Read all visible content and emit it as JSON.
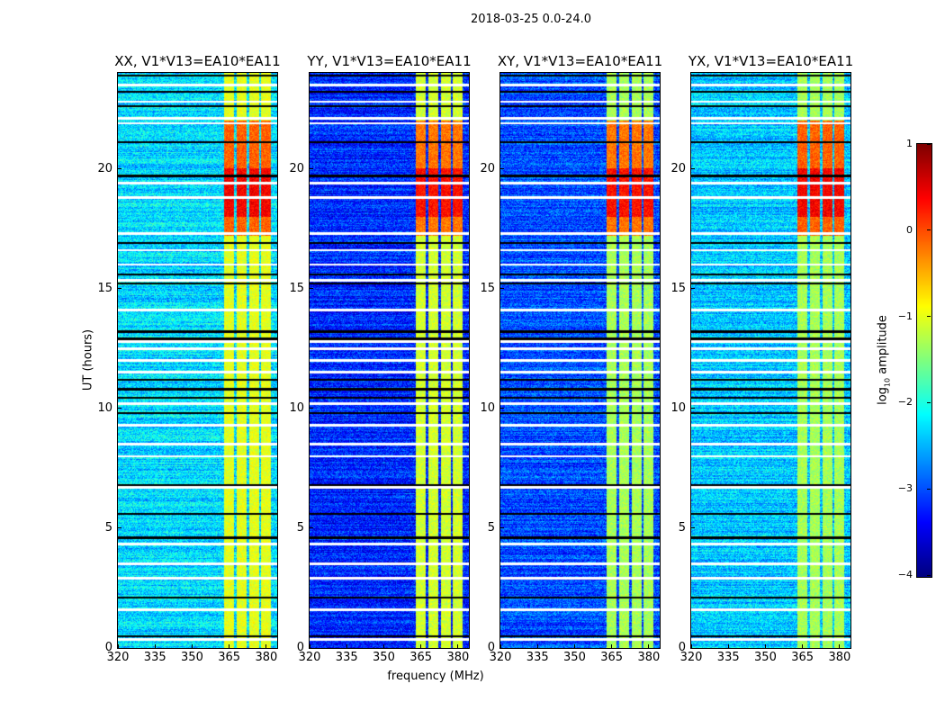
{
  "chart_data": {
    "type": "heatmap",
    "title": "2018-03-25 0.0-24.0",
    "xlabel": "frequency (MHz)",
    "ylabel": "UT (hours)",
    "xlim": [
      320,
      384.4
    ],
    "ylim": [
      0,
      24
    ],
    "xticks": [
      "320",
      "335",
      "350",
      "365",
      "380"
    ],
    "xtick_values": [
      320,
      335,
      350,
      365,
      380
    ],
    "yticks": [
      "0",
      "5",
      "10",
      "15",
      "20"
    ],
    "ytick_values": [
      0,
      5,
      10,
      15,
      20
    ],
    "colorbar": {
      "label_prefix": "log",
      "label_sub": "10",
      "label_suffix": " amplitude",
      "colormap": "jet",
      "range": [
        -4,
        1
      ],
      "ticks": [
        "1",
        "0",
        "−1",
        "−2",
        "−3",
        "−4"
      ],
      "tick_values": [
        1,
        0,
        -1,
        -2,
        -3,
        -4
      ]
    },
    "panels": [
      {
        "title": "XX, V1*V13=EA10*EA11",
        "background_log_amp": -2.3,
        "rfi_quiet_log_amp": -1.0,
        "rfi_active_log_amp": 0.4
      },
      {
        "title": "YY, V1*V13=EA10*EA11",
        "background_log_amp": -3.2,
        "rfi_quiet_log_amp": -1.1,
        "rfi_active_log_amp": 0.3
      },
      {
        "title": "XY, V1*V13=EA10*EA11",
        "background_log_amp": -3.0,
        "rfi_quiet_log_amp": -1.3,
        "rfi_active_log_amp": 0.3
      },
      {
        "title": "YX, V1*V13=EA10*EA11",
        "background_log_amp": -2.4,
        "rfi_quiet_log_amp": -1.3,
        "rfi_active_log_amp": 0.4
      }
    ],
    "rfi_bands_mhz": [
      [
        363,
        367
      ],
      [
        368,
        372
      ],
      [
        373,
        377
      ],
      [
        378,
        382
      ]
    ],
    "rfi_active_hours": [
      17.2,
      22
    ],
    "rfi_strongest_hours": [
      18,
      20
    ],
    "flagged_hours_white": [
      0.35,
      1.6,
      2.9,
      3.5,
      4.35,
      6.7,
      8.0,
      8.5,
      9.3,
      10.2,
      11.5,
      12.0,
      12.5,
      12.8,
      14.1,
      15.35,
      16.0,
      16.6,
      17.3,
      18.8,
      19.4,
      21.9,
      22.1,
      22.8,
      23.5
    ],
    "flagged_hours_black": [
      0.5,
      2.1,
      4.6,
      5.6,
      6.8,
      9.8,
      10.45,
      10.8,
      11.2,
      12.9,
      13.2,
      15.2,
      15.6,
      16.9,
      19.7,
      21.1,
      22.6,
      23.2,
      23.9
    ]
  }
}
